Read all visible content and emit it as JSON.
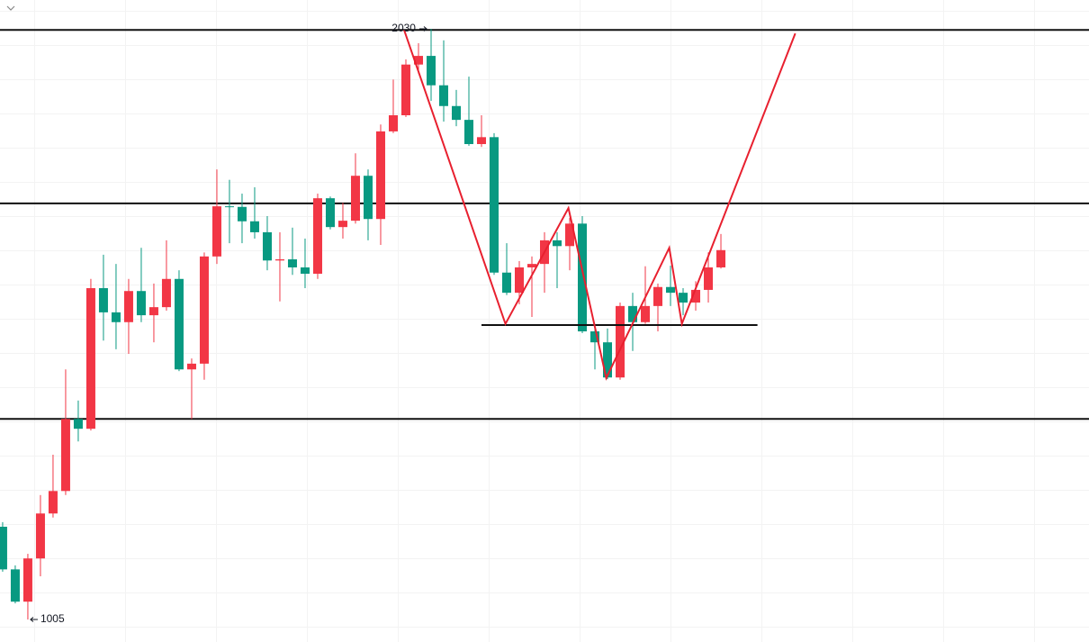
{
  "chart_data": {
    "type": "candlestick",
    "up_color": "#f23645",
    "down_color": "#089981",
    "open": [
      1166,
      1092,
      1036,
      1111,
      1189,
      1228,
      1353,
      1336,
      1580,
      1538,
      1521,
      1575,
      1533,
      1547,
      1596,
      1439,
      1449,
      1635,
      1722,
      1721,
      1696,
      1677,
      1628,
      1630,
      1616,
      1605,
      1736,
      1686,
      1697,
      1775,
      1700,
      1852,
      1880,
      1968,
      1983,
      1932,
      1896,
      1872,
      1830,
      1842,
      1607,
      1572,
      1616,
      1622,
      1663,
      1653,
      1692,
      1505,
      1486,
      1425,
      1549,
      1521,
      1549,
      1582,
      1572,
      1555,
      1577,
      1616
    ],
    "high": [
      1174,
      1099,
      1119,
      1221,
      1291,
      1439,
      1385,
      1596,
      1638,
      1622,
      1596,
      1650,
      1588,
      1663,
      1611,
      1458,
      1642,
      1786,
      1768,
      1744,
      1755,
      1705,
      1677,
      1685,
      1666,
      1744,
      1739,
      1728,
      1814,
      1786,
      1864,
      1942,
      1977,
      2005,
      2030,
      2010,
      1924,
      1947,
      1880,
      1849,
      1658,
      1627,
      1635,
      1677,
      1677,
      1702,
      1705,
      1518,
      1510,
      1555,
      1572,
      1618,
      1588,
      1619,
      1580,
      1592,
      1642,
      1674
    ],
    "low": [
      1088,
      1033,
      1005,
      1080,
      1182,
      1221,
      1314,
      1333,
      1489,
      1474,
      1466,
      1521,
      1486,
      1541,
      1436,
      1353,
      1421,
      1622,
      1658,
      1658,
      1666,
      1611,
      1557,
      1603,
      1580,
      1596,
      1682,
      1666,
      1692,
      1663,
      1655,
      1849,
      1877,
      1952,
      1905,
      1869,
      1861,
      1827,
      1825,
      1603,
      1568,
      1552,
      1530,
      1572,
      1580,
      1611,
      1502,
      1439,
      1422,
      1421,
      1471,
      1518,
      1505,
      1549,
      1533,
      1541,
      1555,
      1614
    ],
    "close": [
      1092,
      1036,
      1111,
      1189,
      1228,
      1353,
      1336,
      1580,
      1538,
      1521,
      1575,
      1533,
      1547,
      1596,
      1439,
      1449,
      1635,
      1722,
      1721,
      1696,
      1677,
      1628,
      1630,
      1616,
      1605,
      1736,
      1686,
      1697,
      1775,
      1700,
      1852,
      1880,
      1968,
      1983,
      1932,
      1896,
      1872,
      1830,
      1842,
      1607,
      1572,
      1616,
      1622,
      1663,
      1653,
      1692,
      1505,
      1486,
      1425,
      1549,
      1521,
      1549,
      1582,
      1572,
      1555,
      1577,
      1616,
      1646
    ],
    "xlim": [
      -0.21,
      86.21
    ],
    "ylim": [
      966,
      2080
    ],
    "levels": [
      2028,
      1727,
      1353
    ],
    "support": {
      "x": [
        38,
        59.9
      ],
      "y": [
        1516,
        1516
      ]
    },
    "zigzag": {
      "color": "#e8202f",
      "x": [
        31.86,
        39.9,
        44.9,
        47.9,
        52.9,
        53.9,
        62.9
      ],
      "y": [
        2028,
        1518,
        1719,
        1424,
        1650,
        1518,
        2022
      ]
    },
    "high_label_index": 34,
    "low_label_index": 2
  }
}
